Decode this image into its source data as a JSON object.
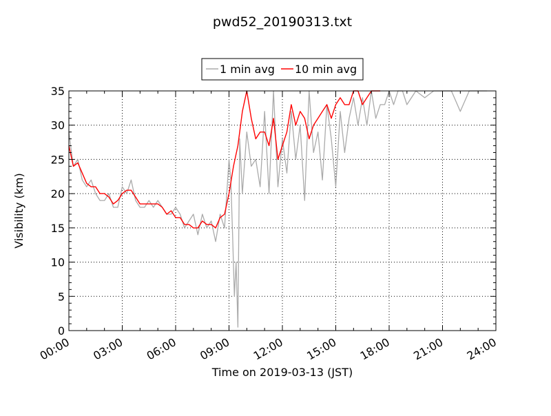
{
  "chart_data": {
    "type": "line",
    "title": "pwd52_20190313.txt",
    "xlabel": "Time on 2019-03-13 (JST)",
    "ylabel": "Visibility (km)",
    "xlim": [
      0,
      24
    ],
    "ylim": [
      0,
      35
    ],
    "x_ticks": [
      0,
      3,
      6,
      9,
      12,
      15,
      18,
      21,
      24
    ],
    "x_tick_labels": [
      "00:00",
      "03:00",
      "06:00",
      "09:00",
      "12:00",
      "15:00",
      "18:00",
      "21:00",
      "24:00"
    ],
    "y_ticks": [
      0,
      5,
      10,
      15,
      20,
      25,
      30,
      35
    ],
    "y_tick_labels": [
      "0",
      "5",
      "10",
      "15",
      "20",
      "25",
      "30",
      "35"
    ],
    "grid": true,
    "legend_position": "top-center",
    "series": [
      {
        "name": "1 min avg",
        "color": "#aaaaaa",
        "x": [
          0.0,
          0.25,
          0.5,
          0.75,
          1.0,
          1.25,
          1.5,
          1.75,
          2.0,
          2.25,
          2.5,
          2.75,
          3.0,
          3.25,
          3.5,
          3.75,
          4.0,
          4.25,
          4.5,
          4.75,
          5.0,
          5.25,
          5.5,
          5.75,
          6.0,
          6.25,
          6.5,
          6.75,
          7.0,
          7.25,
          7.5,
          7.75,
          8.0,
          8.25,
          8.5,
          8.75,
          9.0,
          9.1,
          9.2,
          9.3,
          9.4,
          9.5,
          9.6,
          9.75,
          10.0,
          10.25,
          10.5,
          10.75,
          11.0,
          11.25,
          11.5,
          11.75,
          12.0,
          12.25,
          12.5,
          12.75,
          13.0,
          13.25,
          13.5,
          13.75,
          14.0,
          14.25,
          14.5,
          14.75,
          15.0,
          15.25,
          15.5,
          15.75,
          16.0,
          16.25,
          16.5,
          16.75,
          17.0,
          17.25,
          17.5,
          17.75,
          18.0,
          18.25,
          18.5,
          18.75,
          19.0,
          19.5,
          20.0,
          20.5,
          21.0,
          21.5,
          22.0,
          22.5,
          23.0,
          23.5
        ],
        "values": [
          29,
          24,
          25,
          22,
          21,
          22,
          20,
          19,
          19,
          20,
          18,
          18,
          21,
          20,
          22,
          19,
          18,
          18,
          19,
          18,
          19,
          18,
          17,
          17,
          18,
          17,
          15,
          16,
          17,
          14,
          17,
          15,
          16,
          13,
          17,
          15,
          25,
          22,
          14,
          5,
          10,
          0.5,
          28,
          20,
          29,
          24,
          25,
          21,
          32,
          20,
          35,
          21,
          28,
          23,
          32,
          25,
          30,
          19,
          35,
          26,
          29,
          22,
          33,
          28,
          21,
          32,
          26,
          31,
          34,
          30,
          34,
          30,
          35,
          31,
          33,
          33,
          35,
          33,
          35,
          35,
          33,
          35,
          34,
          35,
          35,
          35,
          32,
          35,
          35,
          35
        ]
      },
      {
        "name": "10 min avg",
        "color": "#ff0000",
        "x": [
          0.0,
          0.25,
          0.5,
          0.75,
          1.0,
          1.25,
          1.5,
          1.75,
          2.0,
          2.25,
          2.5,
          2.75,
          3.0,
          3.25,
          3.5,
          3.75,
          4.0,
          4.25,
          4.5,
          4.75,
          5.0,
          5.25,
          5.5,
          5.75,
          6.0,
          6.25,
          6.5,
          6.75,
          7.0,
          7.25,
          7.5,
          7.75,
          8.0,
          8.25,
          8.5,
          8.75,
          9.0,
          9.25,
          9.5,
          9.75,
          10.0,
          10.25,
          10.5,
          10.75,
          11.0,
          11.25,
          11.5,
          11.75,
          12.0,
          12.25,
          12.5,
          12.75,
          13.0,
          13.25,
          13.5,
          13.75,
          14.0,
          14.25,
          14.5,
          14.75,
          15.0,
          15.25,
          15.5,
          15.75,
          16.0,
          16.25,
          16.5,
          16.75,
          17.0,
          17.25,
          17.5
        ],
        "values": [
          27,
          24,
          24.5,
          23,
          21.5,
          21,
          21,
          20,
          20,
          19.5,
          18.5,
          19,
          20,
          20.5,
          20.5,
          19.5,
          18.5,
          18.5,
          18.5,
          18.5,
          18.5,
          18,
          17,
          17.5,
          16.5,
          16.5,
          15.5,
          15.5,
          15,
          15,
          16,
          15.5,
          15.5,
          15,
          16.5,
          17,
          20,
          24,
          27,
          32,
          35,
          31,
          28,
          29,
          29,
          27,
          31,
          25,
          27,
          29,
          33,
          30,
          32,
          31,
          28,
          30,
          31,
          32,
          33,
          31,
          33,
          34,
          33,
          33,
          35,
          35,
          33,
          34,
          35,
          35,
          35
        ]
      }
    ]
  }
}
